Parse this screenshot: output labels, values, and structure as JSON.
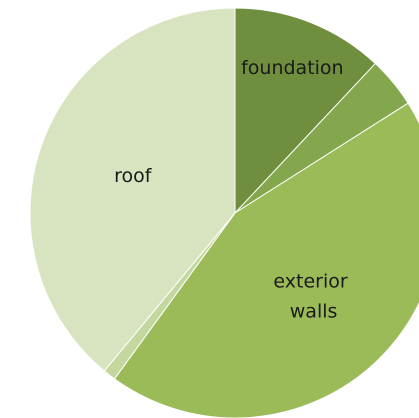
{
  "chart_data": {
    "type": "pie",
    "categories": [
      "foundation",
      null,
      "exterior walls",
      null,
      "roof"
    ],
    "values": [
      12,
      4,
      44,
      1,
      39
    ],
    "colors": [
      "#6f8f3f",
      "#84a64c",
      "#9bbb59",
      "#c4d79e",
      "#d8e4bf"
    ]
  }
}
